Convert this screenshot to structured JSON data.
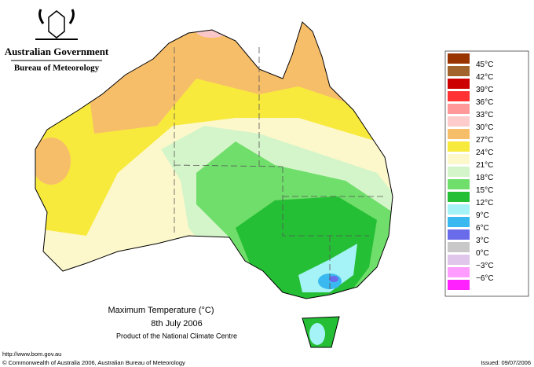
{
  "header": {
    "government": "Australian Government",
    "bureau": "Bureau of Meteorology"
  },
  "legend": {
    "labels": [
      "45°C",
      "42°C",
      "39°C",
      "36°C",
      "33°C",
      "30°C",
      "27°C",
      "24°C",
      "21°C",
      "18°C",
      "15°C",
      "12°C",
      "9°C",
      "6°C",
      "3°C",
      "0°C",
      "−3°C",
      "−6°C"
    ]
  },
  "caption": {
    "title": "Maximum Temperature (°C)",
    "date": "8th July 2006",
    "product": "Product of the National Climate Centre"
  },
  "footer": {
    "url": "http://www.bom.gov.au",
    "copyright": "© Commonwealth of Australia 2006, Australian Bureau of Meteorology",
    "issued": "Issued: 09/07/2006"
  }
}
